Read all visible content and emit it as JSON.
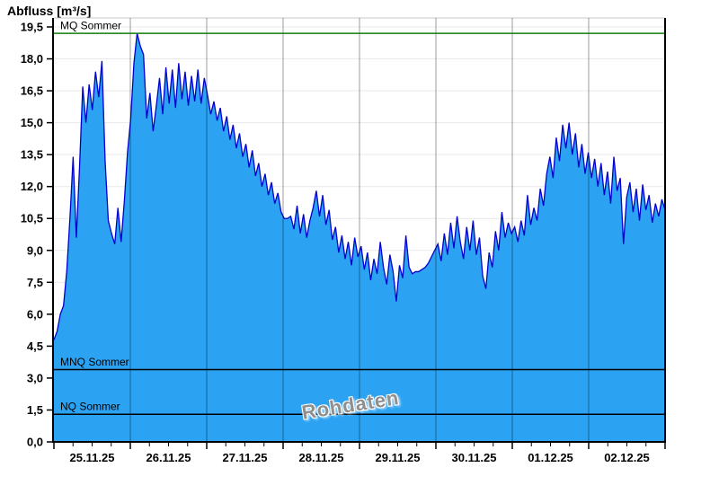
{
  "title": "Abfluss [m³/s]",
  "watermark": "Rohdaten",
  "colors": {
    "series_fill": "#2BA2F2",
    "series_line": "#0101CE",
    "mq_line": "#0F7C0F",
    "mnq_line": "#000000",
    "nq_line": "#000000",
    "grid_horizontal": "#E9E9E9",
    "day_gridline": "rgba(0,0,0,0.38)",
    "frame": "#000000",
    "frame_top": "#C8C8C8"
  },
  "chart_data": {
    "type": "area",
    "title": "Abfluss [m³/s]",
    "ylabel": "Abfluss [m³/s]",
    "xlabel": "",
    "ylim": [
      0,
      19.5
    ],
    "grid": "horizontal light gray under series, vertical day separators over series",
    "legend_position": "none",
    "y_ticks": [
      0,
      1.5,
      3.0,
      4.5,
      6.0,
      7.5,
      9.0,
      10.5,
      12.0,
      13.5,
      15.0,
      16.5,
      18.0,
      19.5
    ],
    "y_tick_labels": [
      "0,0",
      "1,5",
      "3,0",
      "4,5",
      "6,0",
      "7,5",
      "9,0",
      "10,5",
      "12,0",
      "13,5",
      "15,0",
      "16,5",
      "18,0",
      "19,5"
    ],
    "x_axis": {
      "labels": [
        "25.11.25",
        "26.11.25",
        "27.11.25",
        "28.11.25",
        "29.11.25",
        "30.11.25",
        "01.12.25",
        "02.12.25"
      ],
      "days": 8,
      "minor_tick_hours": 6
    },
    "reference_lines": [
      {
        "label": "MQ Sommer",
        "value": 19.2,
        "color": "#0F7C0F"
      },
      {
        "label": "MNQ Sommer",
        "value": 3.4,
        "color": "#000000"
      },
      {
        "label": "NQ Sommer",
        "value": 1.3,
        "color": "#000000"
      }
    ],
    "series": [
      {
        "name": "Rohdaten",
        "start": "25.11.25 00:00",
        "step_hours": 1,
        "values": [
          4.8,
          5.2,
          6.0,
          6.4,
          8.0,
          10.5,
          13.4,
          9.6,
          12.9,
          16.7,
          15.0,
          16.8,
          15.6,
          17.4,
          16.2,
          17.9,
          13.2,
          10.4,
          9.8,
          9.3,
          11.0,
          9.4,
          11.3,
          13.6,
          15.2,
          17.8,
          19.2,
          18.6,
          18.2,
          15.2,
          16.4,
          14.6,
          15.8,
          17.1,
          15.4,
          17.6,
          15.9,
          17.5,
          15.7,
          17.8,
          16.1,
          17.4,
          15.8,
          17.2,
          16.0,
          17.5,
          15.9,
          17.1,
          16.3,
          15.4,
          16.0,
          15.1,
          15.7,
          14.6,
          15.3,
          14.2,
          14.9,
          13.8,
          14.5,
          13.4,
          14.0,
          12.9,
          13.7,
          12.5,
          13.1,
          12.0,
          12.6,
          11.6,
          12.2,
          11.2,
          11.7,
          10.8,
          10.5,
          10.5,
          10.6,
          10.0,
          11.1,
          9.8,
          10.7,
          9.6,
          10.4,
          11.0,
          11.8,
          10.6,
          11.6,
          10.2,
          10.9,
          9.5,
          10.1,
          8.9,
          9.7,
          8.6,
          9.4,
          8.3,
          9.6,
          8.7,
          9.2,
          8.1,
          8.9,
          7.6,
          8.6,
          7.9,
          9.4,
          8.2,
          7.4,
          8.8,
          8.0,
          6.6,
          8.3,
          7.7,
          9.7,
          8.2,
          7.9,
          8.0,
          8.0,
          8.1,
          8.2,
          8.4,
          8.7,
          9.0,
          9.3,
          8.5,
          9.8,
          8.8,
          10.3,
          9.1,
          10.6,
          9.4,
          8.6,
          10.1,
          9.0,
          10.4,
          8.8,
          9.6,
          7.8,
          7.2,
          8.9,
          8.2,
          9.9,
          9.0,
          10.8,
          9.6,
          10.3,
          9.8,
          10.1,
          9.4,
          10.4,
          9.7,
          11.6,
          10.2,
          11.0,
          10.4,
          11.9,
          11.1,
          12.6,
          13.4,
          12.4,
          14.3,
          13.2,
          14.9,
          13.8,
          15.0,
          13.5,
          14.5,
          12.9,
          14.0,
          12.6,
          13.6,
          12.4,
          13.3,
          12.0,
          13.1,
          11.6,
          12.7,
          11.2,
          13.4,
          11.8,
          12.4,
          9.3,
          11.5,
          12.2,
          10.8,
          11.9,
          10.4,
          12.1,
          10.9,
          11.6,
          10.3,
          11.2,
          10.6,
          11.4,
          10.9
        ]
      }
    ]
  }
}
